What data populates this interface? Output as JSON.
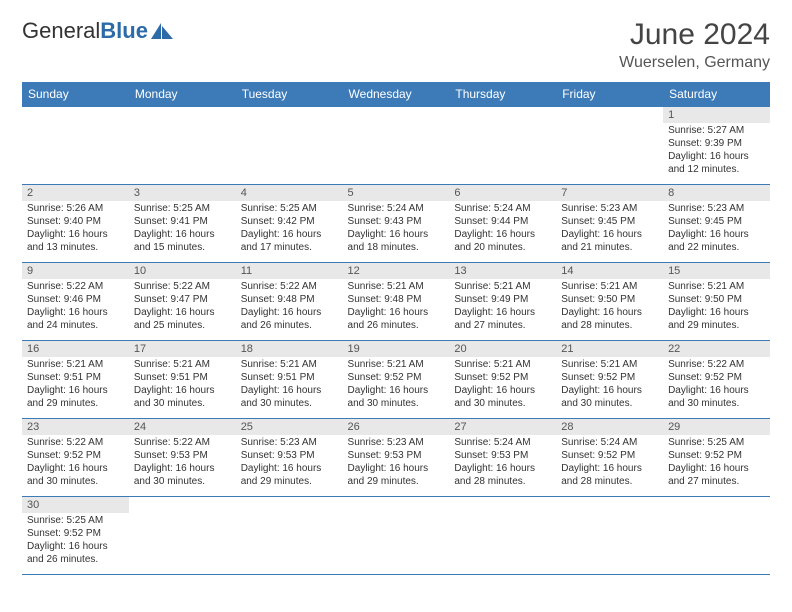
{
  "logo": {
    "text1": "General",
    "text2": "Blue"
  },
  "title": "June 2024",
  "location": "Wuerselen, Germany",
  "colors": {
    "header_bg": "#3d7bb8",
    "header_text": "#ffffff",
    "daynum_bg": "#e8e8e8",
    "border": "#3d7bb8",
    "logo_blue": "#2d6aa8"
  },
  "weekdays": [
    "Sunday",
    "Monday",
    "Tuesday",
    "Wednesday",
    "Thursday",
    "Friday",
    "Saturday"
  ],
  "weeks": [
    [
      null,
      null,
      null,
      null,
      null,
      null,
      {
        "n": "1",
        "sr": "5:27 AM",
        "ss": "9:39 PM",
        "dl": "16 hours and 12 minutes."
      }
    ],
    [
      {
        "n": "2",
        "sr": "5:26 AM",
        "ss": "9:40 PM",
        "dl": "16 hours and 13 minutes."
      },
      {
        "n": "3",
        "sr": "5:25 AM",
        "ss": "9:41 PM",
        "dl": "16 hours and 15 minutes."
      },
      {
        "n": "4",
        "sr": "5:25 AM",
        "ss": "9:42 PM",
        "dl": "16 hours and 17 minutes."
      },
      {
        "n": "5",
        "sr": "5:24 AM",
        "ss": "9:43 PM",
        "dl": "16 hours and 18 minutes."
      },
      {
        "n": "6",
        "sr": "5:24 AM",
        "ss": "9:44 PM",
        "dl": "16 hours and 20 minutes."
      },
      {
        "n": "7",
        "sr": "5:23 AM",
        "ss": "9:45 PM",
        "dl": "16 hours and 21 minutes."
      },
      {
        "n": "8",
        "sr": "5:23 AM",
        "ss": "9:45 PM",
        "dl": "16 hours and 22 minutes."
      }
    ],
    [
      {
        "n": "9",
        "sr": "5:22 AM",
        "ss": "9:46 PM",
        "dl": "16 hours and 24 minutes."
      },
      {
        "n": "10",
        "sr": "5:22 AM",
        "ss": "9:47 PM",
        "dl": "16 hours and 25 minutes."
      },
      {
        "n": "11",
        "sr": "5:22 AM",
        "ss": "9:48 PM",
        "dl": "16 hours and 26 minutes."
      },
      {
        "n": "12",
        "sr": "5:21 AM",
        "ss": "9:48 PM",
        "dl": "16 hours and 26 minutes."
      },
      {
        "n": "13",
        "sr": "5:21 AM",
        "ss": "9:49 PM",
        "dl": "16 hours and 27 minutes."
      },
      {
        "n": "14",
        "sr": "5:21 AM",
        "ss": "9:50 PM",
        "dl": "16 hours and 28 minutes."
      },
      {
        "n": "15",
        "sr": "5:21 AM",
        "ss": "9:50 PM",
        "dl": "16 hours and 29 minutes."
      }
    ],
    [
      {
        "n": "16",
        "sr": "5:21 AM",
        "ss": "9:51 PM",
        "dl": "16 hours and 29 minutes."
      },
      {
        "n": "17",
        "sr": "5:21 AM",
        "ss": "9:51 PM",
        "dl": "16 hours and 30 minutes."
      },
      {
        "n": "18",
        "sr": "5:21 AM",
        "ss": "9:51 PM",
        "dl": "16 hours and 30 minutes."
      },
      {
        "n": "19",
        "sr": "5:21 AM",
        "ss": "9:52 PM",
        "dl": "16 hours and 30 minutes."
      },
      {
        "n": "20",
        "sr": "5:21 AM",
        "ss": "9:52 PM",
        "dl": "16 hours and 30 minutes."
      },
      {
        "n": "21",
        "sr": "5:21 AM",
        "ss": "9:52 PM",
        "dl": "16 hours and 30 minutes."
      },
      {
        "n": "22",
        "sr": "5:22 AM",
        "ss": "9:52 PM",
        "dl": "16 hours and 30 minutes."
      }
    ],
    [
      {
        "n": "23",
        "sr": "5:22 AM",
        "ss": "9:52 PM",
        "dl": "16 hours and 30 minutes."
      },
      {
        "n": "24",
        "sr": "5:22 AM",
        "ss": "9:53 PM",
        "dl": "16 hours and 30 minutes."
      },
      {
        "n": "25",
        "sr": "5:23 AM",
        "ss": "9:53 PM",
        "dl": "16 hours and 29 minutes."
      },
      {
        "n": "26",
        "sr": "5:23 AM",
        "ss": "9:53 PM",
        "dl": "16 hours and 29 minutes."
      },
      {
        "n": "27",
        "sr": "5:24 AM",
        "ss": "9:53 PM",
        "dl": "16 hours and 28 minutes."
      },
      {
        "n": "28",
        "sr": "5:24 AM",
        "ss": "9:52 PM",
        "dl": "16 hours and 28 minutes."
      },
      {
        "n": "29",
        "sr": "5:25 AM",
        "ss": "9:52 PM",
        "dl": "16 hours and 27 minutes."
      }
    ],
    [
      {
        "n": "30",
        "sr": "5:25 AM",
        "ss": "9:52 PM",
        "dl": "16 hours and 26 minutes."
      },
      null,
      null,
      null,
      null,
      null,
      null
    ]
  ],
  "labels": {
    "sunrise": "Sunrise: ",
    "sunset": "Sunset: ",
    "daylight": "Daylight: "
  }
}
